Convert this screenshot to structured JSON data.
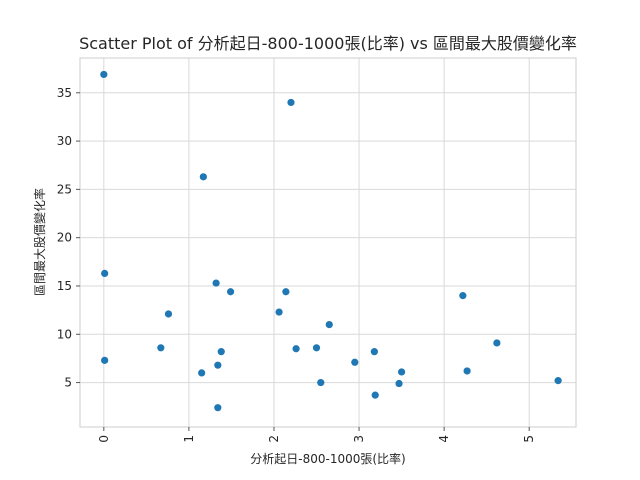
{
  "chart_data": {
    "type": "scatter",
    "title": "Scatter Plot of 分析起日-800-1000張(比率) vs 區間最大股價變化率",
    "xlabel": "分析起日-800-1000張(比率)",
    "ylabel": "區間最大股價變化率",
    "xlim": [
      -0.28,
      5.55
    ],
    "ylim": [
      0.4,
      38.6
    ],
    "xticks": [
      0,
      1,
      2,
      3,
      4,
      5
    ],
    "yticks": [
      5,
      10,
      15,
      20,
      25,
      30,
      35
    ],
    "grid": true,
    "color": "#1f77b4",
    "points": [
      {
        "x": 0.0,
        "y": 36.9
      },
      {
        "x": 2.2,
        "y": 34.0
      },
      {
        "x": 1.17,
        "y": 26.3
      },
      {
        "x": 0.01,
        "y": 16.3
      },
      {
        "x": 1.32,
        "y": 15.3
      },
      {
        "x": 1.49,
        "y": 14.4
      },
      {
        "x": 2.14,
        "y": 14.4
      },
      {
        "x": 4.22,
        "y": 14.0
      },
      {
        "x": 2.06,
        "y": 12.3
      },
      {
        "x": 0.76,
        "y": 12.1
      },
      {
        "x": 2.65,
        "y": 11.0
      },
      {
        "x": 4.62,
        "y": 9.1
      },
      {
        "x": 0.67,
        "y": 8.6
      },
      {
        "x": 2.26,
        "y": 8.5
      },
      {
        "x": 2.5,
        "y": 8.6
      },
      {
        "x": 1.38,
        "y": 8.2
      },
      {
        "x": 3.18,
        "y": 8.2
      },
      {
        "x": 0.01,
        "y": 7.3
      },
      {
        "x": 2.95,
        "y": 7.1
      },
      {
        "x": 1.34,
        "y": 6.8
      },
      {
        "x": 4.27,
        "y": 6.2
      },
      {
        "x": 3.5,
        "y": 6.1
      },
      {
        "x": 1.15,
        "y": 6.0
      },
      {
        "x": 2.55,
        "y": 5.0
      },
      {
        "x": 3.47,
        "y": 4.9
      },
      {
        "x": 5.34,
        "y": 5.2
      },
      {
        "x": 3.19,
        "y": 3.7
      },
      {
        "x": 1.34,
        "y": 2.4
      }
    ]
  }
}
